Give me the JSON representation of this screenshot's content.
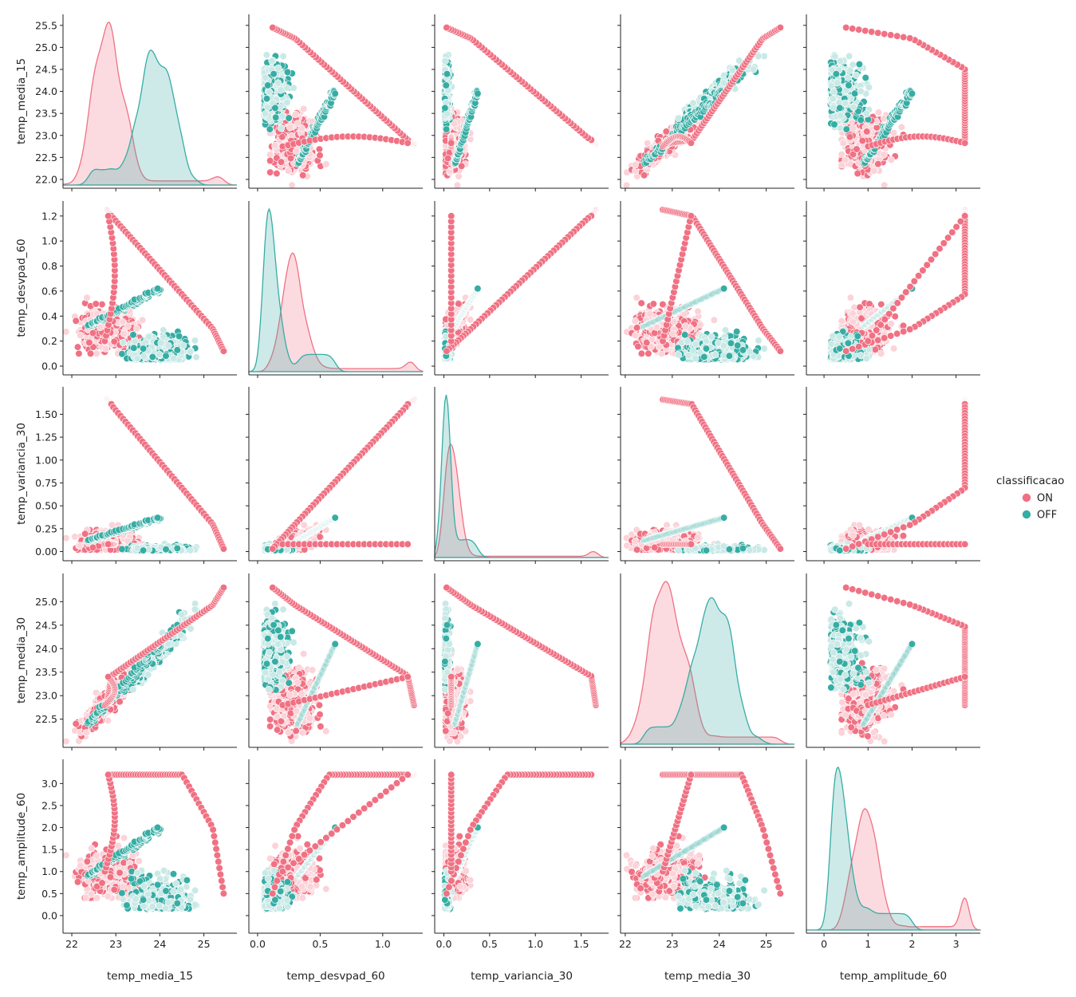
{
  "chart_data": {
    "type": "scatter",
    "subtype": "pairplot",
    "variables": [
      "temp_media_15",
      "temp_desvpad_60",
      "temp_variancia_30",
      "temp_media_30",
      "temp_amplitude_60"
    ],
    "hue": "classificacao",
    "legend": {
      "title": "classificacao",
      "placement": "right",
      "entries": [
        {
          "name": "ON",
          "color": "#f07183"
        },
        {
          "name": "OFF",
          "color": "#36ada4"
        }
      ]
    },
    "axis_ranges": {
      "temp_media_15": [
        21.8,
        25.75
      ],
      "temp_desvpad_60": [
        -0.07,
        1.32
      ],
      "temp_variancia_30": [
        -0.1,
        1.8
      ],
      "temp_media_30": [
        21.9,
        25.6
      ],
      "temp_amplitude_60": [
        -0.4,
        3.55
      ]
    },
    "ticks": {
      "temp_media_15": [
        "22",
        "23",
        "24",
        "25"
      ],
      "temp_desvpad_60": [
        "0.0",
        "0.5",
        "1.0"
      ],
      "temp_variancia_30": [
        "0.0",
        "0.5",
        "1.0",
        "1.5"
      ],
      "temp_media_30": [
        "22",
        "23",
        "24",
        "25"
      ],
      "temp_amplitude_60": [
        "0",
        "1",
        "2",
        "3"
      ]
    },
    "y_ticks": {
      "temp_media_15": [
        "22.0",
        "22.5",
        "23.0",
        "23.5",
        "24.0",
        "24.5",
        "25.0",
        "25.5"
      ],
      "temp_desvpad_60": [
        "0.0",
        "0.2",
        "0.4",
        "0.6",
        "0.8",
        "1.0",
        "1.2"
      ],
      "temp_variancia_30": [
        "0.00",
        "0.25",
        "0.50",
        "0.75",
        "1.00",
        "1.25",
        "1.50"
      ],
      "temp_media_30": [
        "22.5",
        "23.0",
        "23.5",
        "24.0",
        "24.5",
        "25.0"
      ],
      "temp_amplitude_60": [
        "0.0",
        "0.5",
        "1.0",
        "1.5",
        "2.0",
        "2.5",
        "3.0"
      ]
    },
    "grid": false,
    "diagonal": "kde",
    "kde_peaks": {
      "temp_media_15": {
        "ON": [
          22.65,
          23.05
        ],
        "OFF": [
          23.75,
          24.25
        ]
      },
      "temp_desvpad_60": {
        "ON": [
          0.28
        ],
        "OFF": [
          0.05
        ]
      },
      "temp_variancia_30": {
        "ON": [
          0.08
        ],
        "OFF": [
          0.01
        ]
      },
      "temp_media_30": {
        "ON": [
          22.65,
          23.1
        ],
        "OFF": [
          23.75,
          24.2
        ]
      },
      "temp_amplitude_60": {
        "ON": [
          0.95
        ],
        "OFF": [
          0.15
        ]
      }
    }
  }
}
